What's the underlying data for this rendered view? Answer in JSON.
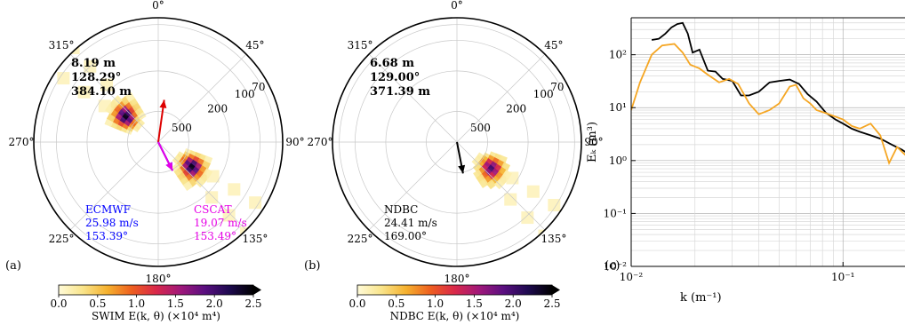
{
  "polar_axis": {
    "angle_ticks": [
      {
        "deg": 0,
        "label": "0°"
      },
      {
        "deg": 45,
        "label": "45°"
      },
      {
        "deg": 90,
        "label": "90°"
      },
      {
        "deg": 135,
        "label": "135°"
      },
      {
        "deg": 180,
        "label": "180°"
      },
      {
        "deg": 225,
        "label": "225°"
      },
      {
        "deg": 270,
        "label": "270°"
      },
      {
        "deg": 315,
        "label": "315°"
      }
    ],
    "radial_tick_labels": [
      "500",
      "200",
      "100",
      "70"
    ]
  },
  "colorbar": {
    "ticks": [
      "0.0",
      "0.5",
      "1.0",
      "1.5",
      "2.0",
      "2.5"
    ],
    "colors": [
      "#fffbd9",
      "#f9e48a",
      "#f5b12e",
      "#ee5f1f",
      "#d9284a",
      "#a0187a",
      "#5a0f80",
      "#1e0a50",
      "#000000"
    ]
  },
  "chart_data": [
    {
      "type": "heatmap",
      "panel_label": "(a)",
      "stats": [
        "8.19 m",
        "128.29°",
        "384.10 m"
      ],
      "colorbar_label": "SWIM E(k, θ) (×10⁴ m⁴)",
      "clim": [
        0,
        2.5
      ],
      "wind_labels": [
        {
          "source": "ECMWF",
          "speed": "25.98 m/s",
          "direction": "153.39°",
          "color": "#0000ff"
        },
        {
          "source": "CSCAT",
          "speed": "19.07 m/s",
          "direction": "153.49°",
          "color": "#e600e6"
        }
      ],
      "arrows": [
        {
          "direction_deg": 8,
          "color": "#dd0000"
        },
        {
          "direction_deg": 153.39,
          "color": "#0000ff"
        },
        {
          "direction_deg": 153.49,
          "color": "#e600e6"
        }
      ],
      "energy_peaks": [
        {
          "direction_deg": 310,
          "wavelength_m": 384,
          "value": 2.4
        },
        {
          "direction_deg": 128,
          "wavelength_m": 384,
          "value": 2.4
        }
      ]
    },
    {
      "type": "heatmap",
      "panel_label": "(b)",
      "stats": [
        "6.68 m",
        "129.00°",
        "371.39 m"
      ],
      "colorbar_label": "NDBC E(k, θ) (×10⁴ m⁴)",
      "clim": [
        0,
        2.5
      ],
      "wind_labels": [
        {
          "source": "NDBC",
          "speed": "24.41 m/s",
          "direction": "169.00°",
          "color": "#000000"
        }
      ],
      "arrows": [
        {
          "direction_deg": 169,
          "color": "#000000"
        }
      ],
      "energy_peaks": [
        {
          "direction_deg": 129,
          "wavelength_m": 371,
          "value": 2.0
        }
      ]
    },
    {
      "type": "line",
      "panel_label": "(c)",
      "xlabel": "k (m⁻¹)",
      "ylabel": "Eₖ (m³)",
      "xscale": "log",
      "yscale": "log",
      "xlim": [
        0.01,
        0.2
      ],
      "ylim": [
        0.01,
        500
      ],
      "x_tick_labels": [
        {
          "value": 0.01,
          "label": "10⁻²"
        },
        {
          "value": 0.1,
          "label": "10⁻¹"
        }
      ],
      "y_tick_labels": [
        {
          "value": 0.01,
          "label": "10⁻²"
        },
        {
          "value": 0.1,
          "label": "10⁻¹"
        },
        {
          "value": 1,
          "label": "10⁰"
        },
        {
          "value": 10,
          "label": "10¹"
        },
        {
          "value": 100,
          "label": "10²"
        }
      ],
      "grid": true,
      "series": [
        {
          "color": "#000000",
          "x": [
            0.0125,
            0.0135,
            0.0145,
            0.0155,
            0.0165,
            0.0175,
            0.0185,
            0.0195,
            0.021,
            0.023,
            0.025,
            0.027,
            0.03,
            0.033,
            0.036,
            0.04,
            0.045,
            0.05,
            0.056,
            0.062,
            0.068,
            0.075,
            0.083,
            0.092,
            0.1,
            0.11,
            0.12,
            0.135,
            0.15,
            0.17,
            0.19,
            0.2
          ],
          "y": [
            190,
            200,
            250,
            330,
            380,
            400,
            250,
            110,
            125,
            50,
            48,
            35,
            32,
            17,
            17,
            20,
            30,
            32,
            34,
            28,
            18,
            13,
            8,
            6,
            5,
            4,
            3.5,
            3,
            2.6,
            2,
            1.6,
            1.4
          ]
        },
        {
          "color": "#f5a623",
          "x": [
            0.01,
            0.011,
            0.0125,
            0.014,
            0.016,
            0.0175,
            0.019,
            0.021,
            0.023,
            0.026,
            0.029,
            0.032,
            0.036,
            0.04,
            0.045,
            0.05,
            0.056,
            0.06,
            0.065,
            0.07,
            0.075,
            0.082,
            0.09,
            0.1,
            0.11,
            0.12,
            0.135,
            0.15,
            0.165,
            0.18,
            0.2
          ],
          "y": [
            9,
            30,
            100,
            150,
            160,
            110,
            65,
            55,
            42,
            30,
            35,
            28,
            12,
            7.5,
            9,
            12,
            25,
            27,
            15,
            12,
            9,
            8,
            7,
            6,
            4.5,
            4,
            5,
            3,
            0.9,
            1.8,
            1.2
          ]
        }
      ]
    }
  ]
}
